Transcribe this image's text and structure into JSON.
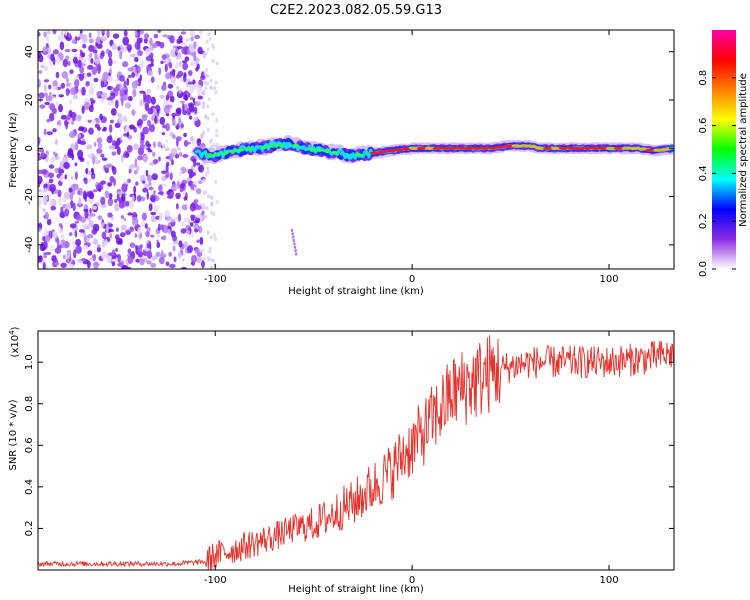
{
  "title": "C2E2.2023.082.05.59.G13",
  "chart_data": [
    {
      "type": "heatmap",
      "xlabel": "Height of straight line (km)",
      "ylabel": "Frequency (Hz)",
      "xlim": [
        -190,
        133
      ],
      "ylim": [
        -50,
        49
      ],
      "x_ticks": [
        -100,
        0,
        100
      ],
      "x_tick_labels": [
        "-100",
        "0",
        "100"
      ],
      "y_ticks": [
        -40,
        -20,
        0,
        20,
        40
      ],
      "y_tick_labels": [
        "-40",
        "-20",
        "0",
        "20",
        "40"
      ],
      "noise_region_x": [
        -190,
        -106
      ],
      "track": [
        {
          "x": -110,
          "y": -2
        },
        {
          "x": -100,
          "y": -3
        },
        {
          "x": -90,
          "y": -1
        },
        {
          "x": -80,
          "y": 0
        },
        {
          "x": -70,
          "y": 1
        },
        {
          "x": -62,
          "y": 2
        },
        {
          "x": -55,
          "y": 0
        },
        {
          "x": -45,
          "y": -1
        },
        {
          "x": -38,
          "y": -2
        },
        {
          "x": -30,
          "y": -3
        },
        {
          "x": -20,
          "y": -2
        },
        {
          "x": -10,
          "y": -1
        },
        {
          "x": 0,
          "y": 0
        },
        {
          "x": 20,
          "y": 0
        },
        {
          "x": 40,
          "y": 0
        },
        {
          "x": 50,
          "y": 1
        },
        {
          "x": 60,
          "y": 1
        },
        {
          "x": 65,
          "y": 0
        },
        {
          "x": 90,
          "y": 0
        },
        {
          "x": 115,
          "y": 0
        },
        {
          "x": 122,
          "y": -1
        },
        {
          "x": 133,
          "y": 0
        }
      ],
      "colorbar": {
        "label": "Normalized spectral amplitude",
        "range": [
          0,
          1
        ],
        "ticks": [
          0.0,
          0.2,
          0.4,
          0.6,
          0.8
        ],
        "tick_labels": [
          "0.0",
          "0.2",
          "0.4",
          "0.6",
          "0.8"
        ],
        "colors": [
          "#ffffff",
          "#8a2be2",
          "#0000ff",
          "#00ffff",
          "#00ff00",
          "#ffff00",
          "#ff8000",
          "#ff0000",
          "#ff00aa"
        ]
      }
    },
    {
      "type": "line",
      "xlabel": "Height of straight line (km)",
      "ylabel": "SNR (10 * v/v)",
      "y_multiplier_label": "(x10",
      "y_multiplier_exp": "4",
      "y_multiplier_close": ")",
      "xlim": [
        -190,
        133
      ],
      "ylim": [
        0,
        1.15
      ],
      "x_ticks": [
        -100,
        0,
        100
      ],
      "x_tick_labels": [
        "-100",
        "0",
        "100"
      ],
      "y_ticks": [
        0.2,
        0.4,
        0.6,
        0.8,
        1.0
      ],
      "y_tick_labels": [
        "0.2",
        "0.4",
        "0.6",
        "0.8",
        "1.0"
      ],
      "line_color": "#e8312b",
      "series": [
        {
          "x": [
            -190,
            -120,
            -105,
            -100,
            -90,
            -80,
            -70,
            -60,
            -50,
            -40,
            -35,
            -30,
            -20,
            -10,
            -5,
            0,
            5,
            10,
            15,
            20,
            30,
            40,
            50,
            60,
            80,
            100,
            120,
            133
          ],
          "y": [
            0.03,
            0.03,
            0.04,
            0.07,
            0.1,
            0.13,
            0.16,
            0.2,
            0.22,
            0.27,
            0.3,
            0.32,
            0.4,
            0.48,
            0.55,
            0.6,
            0.65,
            0.72,
            0.78,
            0.85,
            0.9,
            0.95,
            0.98,
            1.0,
            1.0,
            1.0,
            1.02,
            1.04
          ]
        }
      ]
    }
  ]
}
